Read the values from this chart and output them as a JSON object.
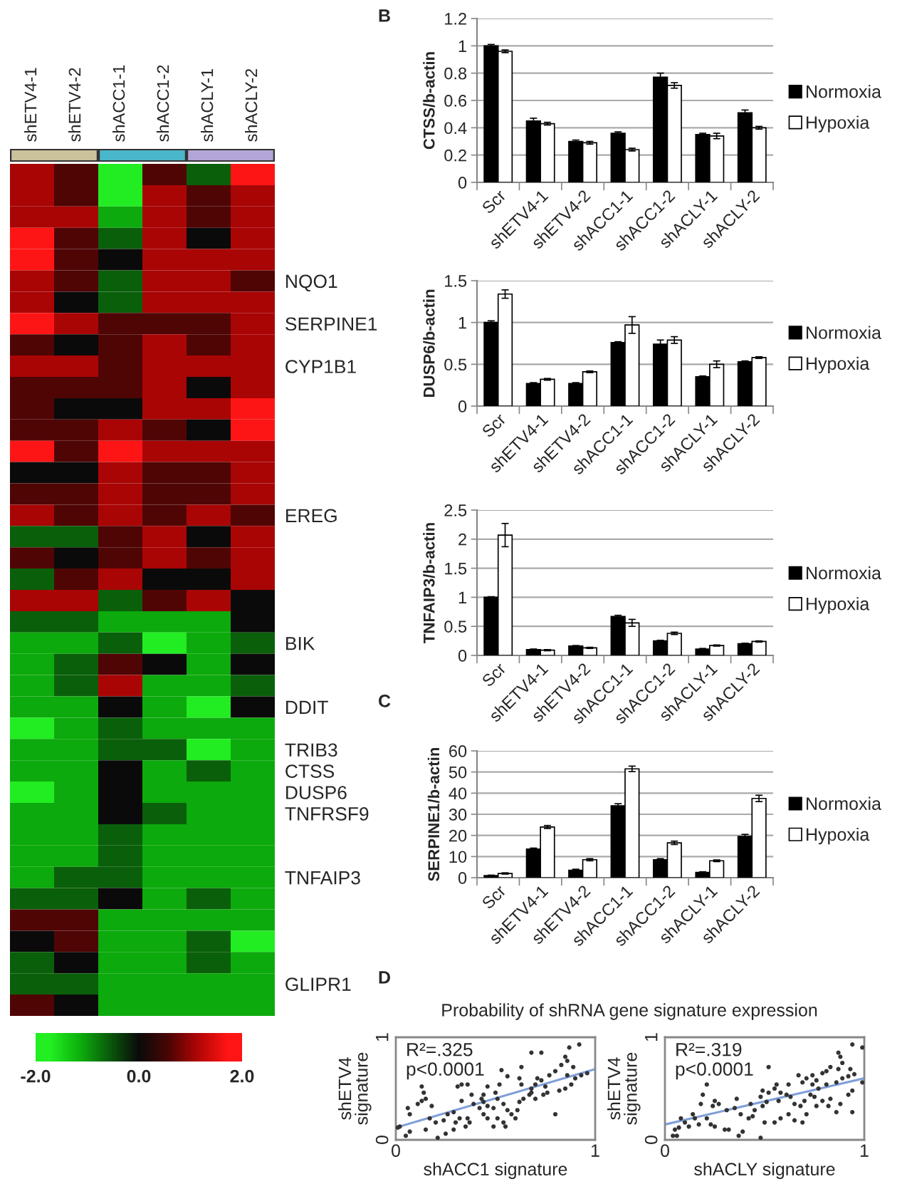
{
  "chart_data": [
    {
      "type": "heatmap",
      "categories": [
        "shETV4-1",
        "shETV4-2",
        "shACC1-1",
        "shACC1-2",
        "shACLY-1",
        "shACLY-2"
      ],
      "y_categories": [
        null,
        null,
        null,
        null,
        null,
        "NQO1",
        null,
        "SERPINE1",
        null,
        "CYP1B1",
        null,
        null,
        null,
        null,
        null,
        null,
        "EREG",
        null,
        null,
        null,
        null,
        null,
        "BIK",
        null,
        null,
        "DDIT",
        null,
        "TRIB3",
        "CTSS",
        "DUSP6",
        "TNFRSF9",
        null,
        null,
        "TNFAIP3",
        null,
        null,
        null,
        null,
        "GLIPR1",
        null
      ],
      "cells": [
        [
          1.1,
          0.6,
          -1.7,
          0.6,
          -0.6,
          1.7
        ],
        [
          1.1,
          0.6,
          -1.7,
          1.1,
          0.6,
          1.1
        ],
        [
          1.1,
          1.1,
          -1.1,
          1.1,
          0.6,
          1.1
        ],
        [
          1.7,
          0.6,
          -0.6,
          1.1,
          0,
          1.1
        ],
        [
          1.7,
          0.6,
          0,
          1.1,
          1.1,
          1.1
        ],
        [
          1.1,
          0.6,
          -0.6,
          1.1,
          1.1,
          0.6
        ],
        [
          1.1,
          0,
          -0.6,
          1.1,
          1.1,
          1.1
        ],
        [
          1.7,
          1.1,
          0.6,
          0.6,
          0.6,
          1.1
        ],
        [
          0.6,
          0,
          0.6,
          1.1,
          0.6,
          1.1
        ],
        [
          1.1,
          1.1,
          0.6,
          1.1,
          1.1,
          1.1
        ],
        [
          0.6,
          0.6,
          0.6,
          1.1,
          0,
          1.1
        ],
        [
          0.6,
          0,
          0,
          1.1,
          1.1,
          1.7
        ],
        [
          0.6,
          0.6,
          1.1,
          0.6,
          0,
          1.7
        ],
        [
          1.7,
          0.6,
          1.7,
          1.1,
          1.1,
          1.1
        ],
        [
          0,
          0,
          1.1,
          0.6,
          0.6,
          1.1
        ],
        [
          0.6,
          0.6,
          1.1,
          0.6,
          0.6,
          1.1
        ],
        [
          1.1,
          0.6,
          1.1,
          0.6,
          1.1,
          0.6
        ],
        [
          -0.6,
          -0.6,
          0.6,
          1.1,
          0,
          1.1
        ],
        [
          0.6,
          0,
          0.6,
          1.1,
          0.6,
          1.1
        ],
        [
          -0.6,
          0.6,
          1.1,
          0,
          0,
          1.1
        ],
        [
          1.1,
          1.1,
          -0.6,
          0.6,
          1.1,
          0
        ],
        [
          -0.6,
          -0.6,
          -1.1,
          -1.1,
          -1.1,
          0
        ],
        [
          -1.1,
          -1.1,
          -0.6,
          -1.7,
          -1.1,
          -0.6
        ],
        [
          -1.1,
          -0.6,
          0.6,
          0,
          -1.1,
          0
        ],
        [
          -1.1,
          -0.6,
          1.1,
          -1.1,
          -1.1,
          -0.6
        ],
        [
          -1.1,
          -1.1,
          0,
          -1.1,
          -1.7,
          0
        ],
        [
          -1.7,
          -1.1,
          -0.6,
          -1.1,
          -1.1,
          -1.1
        ],
        [
          -1.1,
          -1.1,
          -0.6,
          -0.6,
          -1.7,
          -1.1
        ],
        [
          -1.1,
          -1.1,
          0,
          -1.1,
          -0.6,
          -1.1
        ],
        [
          -1.7,
          -1.1,
          0,
          -1.1,
          -1.1,
          -1.1
        ],
        [
          -1.1,
          -1.1,
          0,
          -0.6,
          -1.1,
          -1.1
        ],
        [
          -1.1,
          -1.1,
          -0.6,
          -1.1,
          -1.1,
          -1.1
        ],
        [
          -1.1,
          -1.1,
          -0.6,
          -1.1,
          -1.1,
          -1.1
        ],
        [
          -1.1,
          -0.6,
          -0.6,
          -1.1,
          -1.1,
          -1.1
        ],
        [
          -0.6,
          -0.6,
          0,
          -1.1,
          -0.6,
          -1.1
        ],
        [
          0.6,
          0.6,
          -1.1,
          -1.1,
          -1.1,
          -1.1
        ],
        [
          0,
          0.6,
          -1.1,
          -1.1,
          -0.6,
          -1.7
        ],
        [
          -0.6,
          0,
          -1.1,
          -1.1,
          -0.6,
          -1.1
        ],
        [
          -0.6,
          -0.6,
          -1.1,
          -1.1,
          -1.1,
          -1.1
        ],
        [
          0.6,
          0,
          -1.1,
          -1.1,
          -1.1,
          -1.1
        ]
      ],
      "clim": [
        -2,
        2
      ],
      "cticks": [
        {
          "value": -2,
          "label": "-2.0"
        },
        {
          "value": 0,
          "label": "0.0"
        },
        {
          "value": 2,
          "label": "2.0"
        }
      ]
    },
    {
      "type": "bar",
      "title": "B",
      "categories": [
        "Scr",
        "shETV4-1",
        "shETV4-2",
        "shACC1-1",
        "shACC1-2",
        "shACLY-1",
        "shACLY-2"
      ],
      "ylabel": "CTSS/b-actin",
      "ylim": [
        0,
        1.2
      ],
      "yticks": [
        0,
        0.2,
        0.4,
        0.6,
        0.8,
        1,
        1.2
      ],
      "grid": "y",
      "legend": "right",
      "series": [
        {
          "name": "Normoxia",
          "color": "#000000",
          "values": [
            1,
            0.45,
            0.3,
            0.36,
            0.77,
            0.35,
            0.51
          ],
          "errors": [
            0.01,
            0.02,
            0.01,
            0.01,
            0.03,
            0.01,
            0.02
          ]
        },
        {
          "name": "Hypoxia",
          "color": "#ffffff",
          "values": [
            0.96,
            0.43,
            0.29,
            0.24,
            0.71,
            0.34,
            0.4
          ],
          "errors": [
            0.01,
            0.01,
            0.01,
            0.01,
            0.02,
            0.02,
            0.01
          ]
        }
      ]
    },
    {
      "type": "bar",
      "categories": [
        "Scr",
        "shETV4-1",
        "shETV4-2",
        "shACC1-1",
        "shACC1-2",
        "shACLY-1",
        "shACLY-2"
      ],
      "ylabel": "DUSP6/b-actin",
      "ylim": [
        0,
        1.5
      ],
      "yticks": [
        0,
        0.5,
        1,
        1.5
      ],
      "grid": "y",
      "legend": "right",
      "series": [
        {
          "name": "Normoxia",
          "color": "#000000",
          "values": [
            1,
            0.27,
            0.27,
            0.76,
            0.74,
            0.35,
            0.53
          ],
          "errors": [
            0.02,
            0.01,
            0.01,
            0.01,
            0.05,
            0.01,
            0.01
          ]
        },
        {
          "name": "Hypoxia",
          "color": "#ffffff",
          "values": [
            1.34,
            0.32,
            0.41,
            0.97,
            0.79,
            0.5,
            0.58
          ],
          "errors": [
            0.05,
            0.01,
            0.01,
            0.1,
            0.04,
            0.04,
            0.01
          ]
        }
      ]
    },
    {
      "type": "bar",
      "categories": [
        "Scr",
        "shETV4-1",
        "shETV4-2",
        "shACC1-1",
        "shACC1-2",
        "shACLY-1",
        "shACLY-2"
      ],
      "ylabel": "TNFAIP3/b-actin",
      "ylim": [
        0,
        2.5
      ],
      "yticks": [
        0,
        0.5,
        1,
        1.5,
        2,
        2.5
      ],
      "grid": "y",
      "legend": "right",
      "series": [
        {
          "name": "Normoxia",
          "color": "#000000",
          "values": [
            1,
            0.1,
            0.16,
            0.67,
            0.25,
            0.11,
            0.2
          ],
          "errors": [
            0.01,
            0.01,
            0.01,
            0.02,
            0.01,
            0.01,
            0.01
          ]
        },
        {
          "name": "Hypoxia",
          "color": "#ffffff",
          "values": [
            2.07,
            0.09,
            0.13,
            0.56,
            0.38,
            0.17,
            0.24
          ],
          "errors": [
            0.2,
            0.01,
            0.01,
            0.06,
            0.02,
            0.01,
            0.01
          ]
        }
      ]
    },
    {
      "type": "bar",
      "title": "C",
      "categories": [
        "Scr",
        "shETV4-1",
        "shETV4-2",
        "shACC1-1",
        "shACC1-2",
        "shACLY-1",
        "shACLY-2"
      ],
      "ylabel": "SERPINE1/b-actin",
      "ylim": [
        0,
        60
      ],
      "yticks": [
        0,
        10,
        20,
        30,
        40,
        50,
        60
      ],
      "grid": "y",
      "legend": "right",
      "series": [
        {
          "name": "Normoxia",
          "color": "#000000",
          "values": [
            1,
            13.5,
            3.5,
            34,
            8.5,
            2.5,
            19.5
          ],
          "errors": [
            0.2,
            0.5,
            0.5,
            1,
            0.5,
            0.3,
            1
          ]
        },
        {
          "name": "Hypoxia",
          "color": "#ffffff",
          "values": [
            2,
            24,
            8.5,
            51.5,
            16.5,
            8,
            37.5
          ],
          "errors": [
            0.3,
            0.7,
            0.5,
            1.3,
            0.8,
            0.4,
            1.5
          ]
        }
      ]
    },
    {
      "type": "scatter",
      "title": "D",
      "subtitle": "Probability of shRNA gene signature expression",
      "xlabel": "shACC1 signature",
      "ylabel": "shETV4\nsignature",
      "xlim": [
        0,
        1
      ],
      "ylim": [
        0,
        1
      ],
      "xticks": [
        0,
        1
      ],
      "yticks": [
        0,
        1
      ],
      "annotations": [
        "R²=.325",
        "p<0.0001"
      ],
      "series": [
        {
          "color": "#333333",
          "marker": "circle",
          "x": [
            0.68,
            0.73,
            0.87,
            0.92,
            0.85,
            0.86,
            0.83,
            0.8,
            0.77,
            0.73,
            0.7,
            0.63,
            0.62,
            0.56,
            0.52,
            0.53,
            0.5,
            0.46,
            0.44,
            0.43,
            0.39,
            0.42,
            0.38,
            0.36,
            0.33,
            0.31,
            0.36,
            0.37,
            0.35,
            0.32,
            0.29,
            0.25,
            0.21,
            0.15,
            0.17,
            0.18,
            0.15,
            0.13,
            0.14,
            0.11,
            0.13,
            0.06,
            0.07,
            0.02,
            0.01,
            0.07,
            0.05,
            0.44,
            0.46,
            0.49,
            0.51,
            0.54,
            0.56,
            0.58,
            0.6,
            0.61,
            0.62,
            0.64,
            0.67,
            0.68,
            0.7,
            0.74,
            0.76,
            0.8,
            0.82,
            0.85,
            0.88,
            0.9,
            0.93,
            0.96,
            0.89,
            0.86,
            0.24,
            0.26,
            0.2,
            0.29,
            0.3,
            0.33,
            0.44,
            0.46,
            0.51,
            0.54,
            0.55,
            0.49,
            0.63,
            0.68,
            0.71,
            0.75
          ],
          "values": [
            0.85,
            0.85,
            0.9,
            0.93,
            0.81,
            0.77,
            0.73,
            0.67,
            0.63,
            0.58,
            0.54,
            0.71,
            0.6,
            0.62,
            0.54,
            0.68,
            0.46,
            0.52,
            0.44,
            0.4,
            0.35,
            0.31,
            0.44,
            0.54,
            0.54,
            0.52,
            0.21,
            0.17,
            0.13,
            0.21,
            0.1,
            0.06,
            0.02,
            0.1,
            0.21,
            0.33,
            0.4,
            0.52,
            0.46,
            0.35,
            0.38,
            0.31,
            0.25,
            0.13,
            0.12,
            0.08,
            0.04,
            0.25,
            0.21,
            0.31,
            0.4,
            0.35,
            0.29,
            0.25,
            0.21,
            0.29,
            0.37,
            0.4,
            0.44,
            0.5,
            0.4,
            0.44,
            0.46,
            0.25,
            0.48,
            0.5,
            0.54,
            0.6,
            0.63,
            0.65,
            0.71,
            0.63,
            0.19,
            0.25,
            0.17,
            0.27,
            0.17,
            0.38,
            0.37,
            0.33,
            0.21,
            0.17,
            0.13,
            0.13,
            0.54,
            0.46,
            0.6,
            0.52
          ]
        },
        {
          "type": "line",
          "color": "#7f9fd8",
          "x": [
            0,
            1
          ],
          "values": [
            0.12,
            0.69
          ]
        }
      ]
    },
    {
      "type": "scatter",
      "xlabel": "shACLY signature",
      "ylabel": "shETV4\nsignature",
      "xlim": [
        0,
        1
      ],
      "ylim": [
        0,
        1
      ],
      "xticks": [
        0,
        1
      ],
      "yticks": [
        0,
        1
      ],
      "annotations": [
        "R²=.319",
        "p<0.0001"
      ],
      "series": [
        {
          "color": "#333333",
          "marker": "circle",
          "x": [
            0.94,
            0.99,
            0.87,
            0.88,
            0.89,
            0.87,
            0.83,
            0.81,
            0.79,
            0.74,
            0.71,
            0.69,
            0.76,
            0.74,
            0.77,
            0.81,
            0.86,
            0.92,
            0.95,
            0.99,
            0.94,
            0.92,
            0.94,
            0.88,
            0.86,
            0.82,
            0.79,
            0.75,
            0.73,
            0.7,
            0.68,
            0.65,
            0.63,
            0.61,
            0.58,
            0.57,
            0.55,
            0.52,
            0.49,
            0.48,
            0.51,
            0.49,
            0.45,
            0.43,
            0.42,
            0.44,
            0.38,
            0.36,
            0.35,
            0.31,
            0.27,
            0.25,
            0.24,
            0.21,
            0.21,
            0.19,
            0.18,
            0.15,
            0.14,
            0.12,
            0.1,
            0.08,
            0.07,
            0.05,
            0.04,
            0.06,
            0.17,
            0.23,
            0.25,
            0.3,
            0.32,
            0.37,
            0.39,
            0.48,
            0.5,
            0.55,
            0.58,
            0.62,
            0.65,
            0.69,
            0.71,
            0.76,
            0.83,
            0.93,
            0.56,
            0.62,
            0.67,
            0.52,
            0.89
          ],
          "values": [
            0.93,
            0.9,
            0.85,
            0.81,
            0.75,
            0.69,
            0.71,
            0.67,
            0.65,
            0.63,
            0.6,
            0.56,
            0.58,
            0.54,
            0.5,
            0.54,
            0.56,
            0.62,
            0.64,
            0.56,
            0.48,
            0.44,
            0.27,
            0.35,
            0.27,
            0.33,
            0.38,
            0.42,
            0.44,
            0.38,
            0.33,
            0.35,
            0.42,
            0.44,
            0.46,
            0.38,
            0.5,
            0.46,
            0.48,
            0.42,
            0.37,
            0.33,
            0.29,
            0.35,
            0.21,
            0.23,
            0.25,
            0.4,
            0.31,
            0.29,
            0.35,
            0.38,
            0.33,
            0.54,
            0.21,
            0.44,
            0.35,
            0.21,
            0.25,
            0.13,
            0.17,
            0.21,
            0.12,
            0.1,
            0.04,
            0.04,
            0.15,
            0.15,
            0.13,
            0.1,
            0.1,
            0.04,
            0.08,
            0.02,
            0.17,
            0.17,
            0.21,
            0.25,
            0.19,
            0.17,
            0.25,
            0.33,
            0.4,
            0.69,
            0.54,
            0.54,
            0.63,
            0.71,
            0.6
          ]
        },
        {
          "type": "line",
          "color": "#7f9fd8",
          "x": [
            0,
            1
          ],
          "values": [
            0.15,
            0.6
          ]
        }
      ]
    }
  ]
}
